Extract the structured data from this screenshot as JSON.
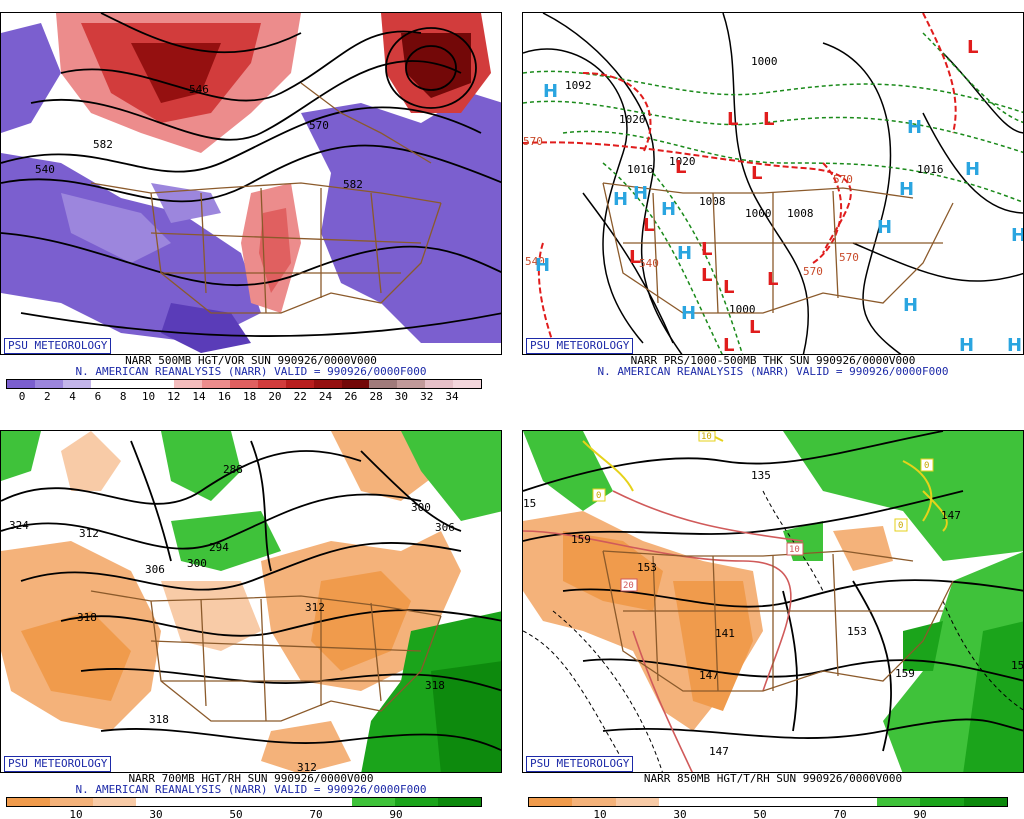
{
  "badge_label": "PSU METEOROLOGY",
  "panels": [
    {
      "caption_line1": "NARR 500MB HGT/VOR SUN 990926/0000V000",
      "caption_line2": "N. AMERICAN REANALYSIS (NARR) VALID = 990926/0000F000",
      "colorbar": {
        "colors": [
          "#7b5fcf",
          "#9c86dd",
          "#c3b5ea",
          "#ffffff",
          "#ffffff",
          "#ffffff",
          "#f4bcbc",
          "#ec8c8c",
          "#e06060",
          "#d23c3c",
          "#b81e1e",
          "#951010",
          "#730808",
          "#a07b7b",
          "#c19a9a",
          "#e6c0c8",
          "#f3d6dc"
        ],
        "tick_labels": [
          "0",
          "2",
          "4",
          "6",
          "8",
          "10",
          "12",
          "14",
          "16",
          "18",
          "20",
          "22",
          "24",
          "26",
          "28",
          "30",
          "32",
          "34"
        ]
      },
      "contour_labels": [
        "546",
        "582",
        "582",
        "570",
        "540"
      ]
    },
    {
      "caption_line1": "NARR PRS/1000-500MB THK SUN 990926/0000V000",
      "caption_line2": "N. AMERICAN REANALYSIS (NARR) VALID = 990926/0000F000",
      "contour_labels": [
        "1092",
        "1000",
        "1020",
        "1016",
        "1008",
        "1000",
        "1008",
        "1020",
        "1016",
        "570",
        "570",
        "570",
        "540",
        "1000",
        "570",
        "540"
      ],
      "highs_label": "H",
      "lows_label": "L",
      "colors": {
        "high": "#2aa5e0",
        "low": "#e01c1c",
        "thickness": "#e01c1c",
        "thickness_green": "#1a8a1a"
      }
    },
    {
      "caption_line1": "NARR 700MB HGT/RH SUN 990926/0000V000",
      "caption_line2": "N. AMERICAN REANALYSIS (NARR) VALID = 990926/0000F000",
      "colorbar": {
        "colors": [
          "#f09b4c",
          "#f4b27a",
          "#f8cba7",
          "#ffffff",
          "#ffffff",
          "#ffffff",
          "#ffffff",
          "#ffffff",
          "#3fc23a",
          "#1ba41b",
          "#0d8a0d"
        ],
        "tick_labels": [
          "10",
          "30",
          "50",
          "70",
          "90"
        ]
      },
      "contour_labels": [
        "324",
        "312",
        "318",
        "288",
        "294",
        "306",
        "300",
        "300",
        "306",
        "312",
        "318",
        "318",
        "312"
      ]
    },
    {
      "caption_line1": "NARR 850MB HGT/T/RH SUN 990926/0000V000",
      "caption_line2": "",
      "colorbar": {
        "colors": [
          "#f09b4c",
          "#f4b27a",
          "#f8cba7",
          "#ffffff",
          "#ffffff",
          "#ffffff",
          "#ffffff",
          "#ffffff",
          "#3fc23a",
          "#1ba41b",
          "#0d8a0d"
        ],
        "tick_labels": [
          "10",
          "30",
          "50",
          "70",
          "90"
        ]
      },
      "contour_labels": [
        "159",
        "153",
        "141",
        "147",
        "147",
        "135",
        "153",
        "159",
        "147",
        "15",
        "15"
      ],
      "temp_labels": [
        "10",
        "20",
        "0",
        "0",
        "0",
        "10"
      ]
    }
  ]
}
